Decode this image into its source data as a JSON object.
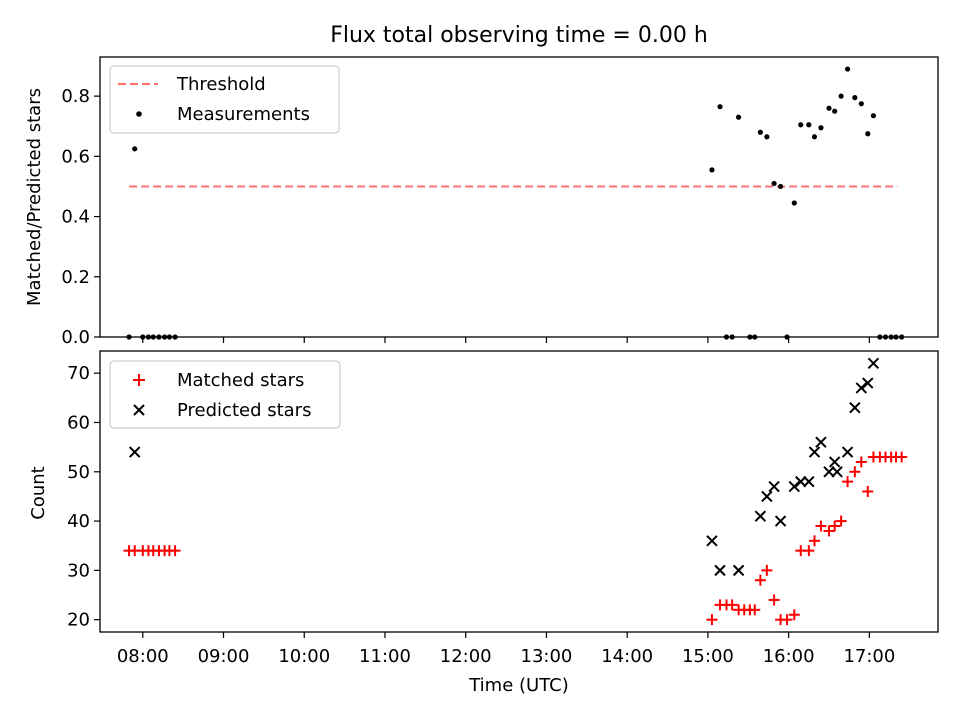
{
  "title": "Flux total observing time = 0.00 h",
  "x_ticks": [
    "08:00",
    "09:00",
    "10:00",
    "11:00",
    "12:00",
    "13:00",
    "14:00",
    "15:00",
    "16:00",
    "17:00"
  ],
  "colors": {
    "threshold": "#ff7070",
    "measurement": "#000000",
    "matched": "#ff0000",
    "predicted": "#000000"
  },
  "chart_data": [
    {
      "type": "scatter",
      "title": "Flux total observing time = 0.00 h",
      "xlabel": "",
      "ylabel": "Matched/Predicted stars",
      "x_unit": "hours (UTC)",
      "xlim": [
        7.47,
        17.85
      ],
      "ylim": [
        0.0,
        0.93
      ],
      "yticks": [
        "0.0",
        "0.2",
        "0.4",
        "0.6",
        "0.8"
      ],
      "legend_position": "upper-left",
      "threshold": {
        "name": "Threshold",
        "style": "dashed",
        "y": 0.5,
        "x_range": [
          7.83,
          17.35
        ]
      },
      "series": [
        {
          "name": "Measurements",
          "marker": "dot",
          "points": [
            [
              7.83,
              0.0
            ],
            [
              7.9,
              0.625
            ],
            [
              8.0,
              0.0
            ],
            [
              8.07,
              0.0
            ],
            [
              8.13,
              0.0
            ],
            [
              8.2,
              0.0
            ],
            [
              8.27,
              0.0
            ],
            [
              8.33,
              0.0
            ],
            [
              8.4,
              0.0
            ],
            [
              15.05,
              0.555
            ],
            [
              15.15,
              0.765
            ],
            [
              15.23,
              0.0
            ],
            [
              15.3,
              0.0
            ],
            [
              15.38,
              0.73
            ],
            [
              15.52,
              0.0
            ],
            [
              15.58,
              0.0
            ],
            [
              15.65,
              0.68
            ],
            [
              15.73,
              0.665
            ],
            [
              15.82,
              0.51
            ],
            [
              15.9,
              0.5
            ],
            [
              15.98,
              0.0
            ],
            [
              16.07,
              0.445
            ],
            [
              16.15,
              0.705
            ],
            [
              16.25,
              0.705
            ],
            [
              16.32,
              0.665
            ],
            [
              16.4,
              0.695
            ],
            [
              16.5,
              0.76
            ],
            [
              16.57,
              0.75
            ],
            [
              16.65,
              0.8
            ],
            [
              16.73,
              0.89
            ],
            [
              16.82,
              0.795
            ],
            [
              16.9,
              0.775
            ],
            [
              16.98,
              0.675
            ],
            [
              17.05,
              0.735
            ],
            [
              17.13,
              0.0
            ],
            [
              17.2,
              0.0
            ],
            [
              17.27,
              0.0
            ],
            [
              17.33,
              0.0
            ],
            [
              17.4,
              0.0
            ]
          ]
        }
      ]
    },
    {
      "type": "scatter",
      "title": "",
      "xlabel": "Time (UTC)",
      "ylabel": "Count",
      "x_unit": "hours (UTC)",
      "xlim": [
        7.47,
        17.85
      ],
      "ylim": [
        17.5,
        74.5
      ],
      "yticks": [
        "20",
        "30",
        "40",
        "50",
        "60",
        "70"
      ],
      "legend_position": "upper-left",
      "series": [
        {
          "name": "Matched stars",
          "marker": "plus",
          "points": [
            [
              7.83,
              34
            ],
            [
              7.9,
              34
            ],
            [
              8.0,
              34
            ],
            [
              8.07,
              34
            ],
            [
              8.13,
              34
            ],
            [
              8.2,
              34
            ],
            [
              8.27,
              34
            ],
            [
              8.33,
              34
            ],
            [
              8.4,
              34
            ],
            [
              15.05,
              20
            ],
            [
              15.15,
              23
            ],
            [
              15.23,
              23
            ],
            [
              15.3,
              23
            ],
            [
              15.38,
              22
            ],
            [
              15.45,
              22
            ],
            [
              15.52,
              22
            ],
            [
              15.58,
              22
            ],
            [
              15.65,
              28
            ],
            [
              15.73,
              30
            ],
            [
              15.82,
              24
            ],
            [
              15.9,
              20
            ],
            [
              15.98,
              20
            ],
            [
              16.07,
              21
            ],
            [
              16.15,
              34
            ],
            [
              16.25,
              34
            ],
            [
              16.32,
              36
            ],
            [
              16.4,
              39
            ],
            [
              16.5,
              38
            ],
            [
              16.57,
              39
            ],
            [
              16.65,
              40
            ],
            [
              16.73,
              48
            ],
            [
              16.82,
              50
            ],
            [
              16.9,
              52
            ],
            [
              16.98,
              46
            ],
            [
              17.05,
              53
            ],
            [
              17.13,
              53
            ],
            [
              17.2,
              53
            ],
            [
              17.27,
              53
            ],
            [
              17.33,
              53
            ],
            [
              17.4,
              53
            ]
          ]
        },
        {
          "name": "Predicted stars",
          "marker": "x",
          "points": [
            [
              7.9,
              54
            ],
            [
              15.05,
              36
            ],
            [
              15.15,
              30
            ],
            [
              15.38,
              30
            ],
            [
              15.65,
              41
            ],
            [
              15.73,
              45
            ],
            [
              15.82,
              47
            ],
            [
              15.9,
              40
            ],
            [
              16.07,
              47
            ],
            [
              16.15,
              48
            ],
            [
              16.25,
              48
            ],
            [
              16.32,
              54
            ],
            [
              16.4,
              56
            ],
            [
              16.5,
              50
            ],
            [
              16.57,
              52
            ],
            [
              16.6,
              50
            ],
            [
              16.73,
              54
            ],
            [
              16.82,
              63
            ],
            [
              16.9,
              67
            ],
            [
              16.98,
              68
            ],
            [
              17.05,
              72
            ]
          ]
        }
      ]
    }
  ]
}
